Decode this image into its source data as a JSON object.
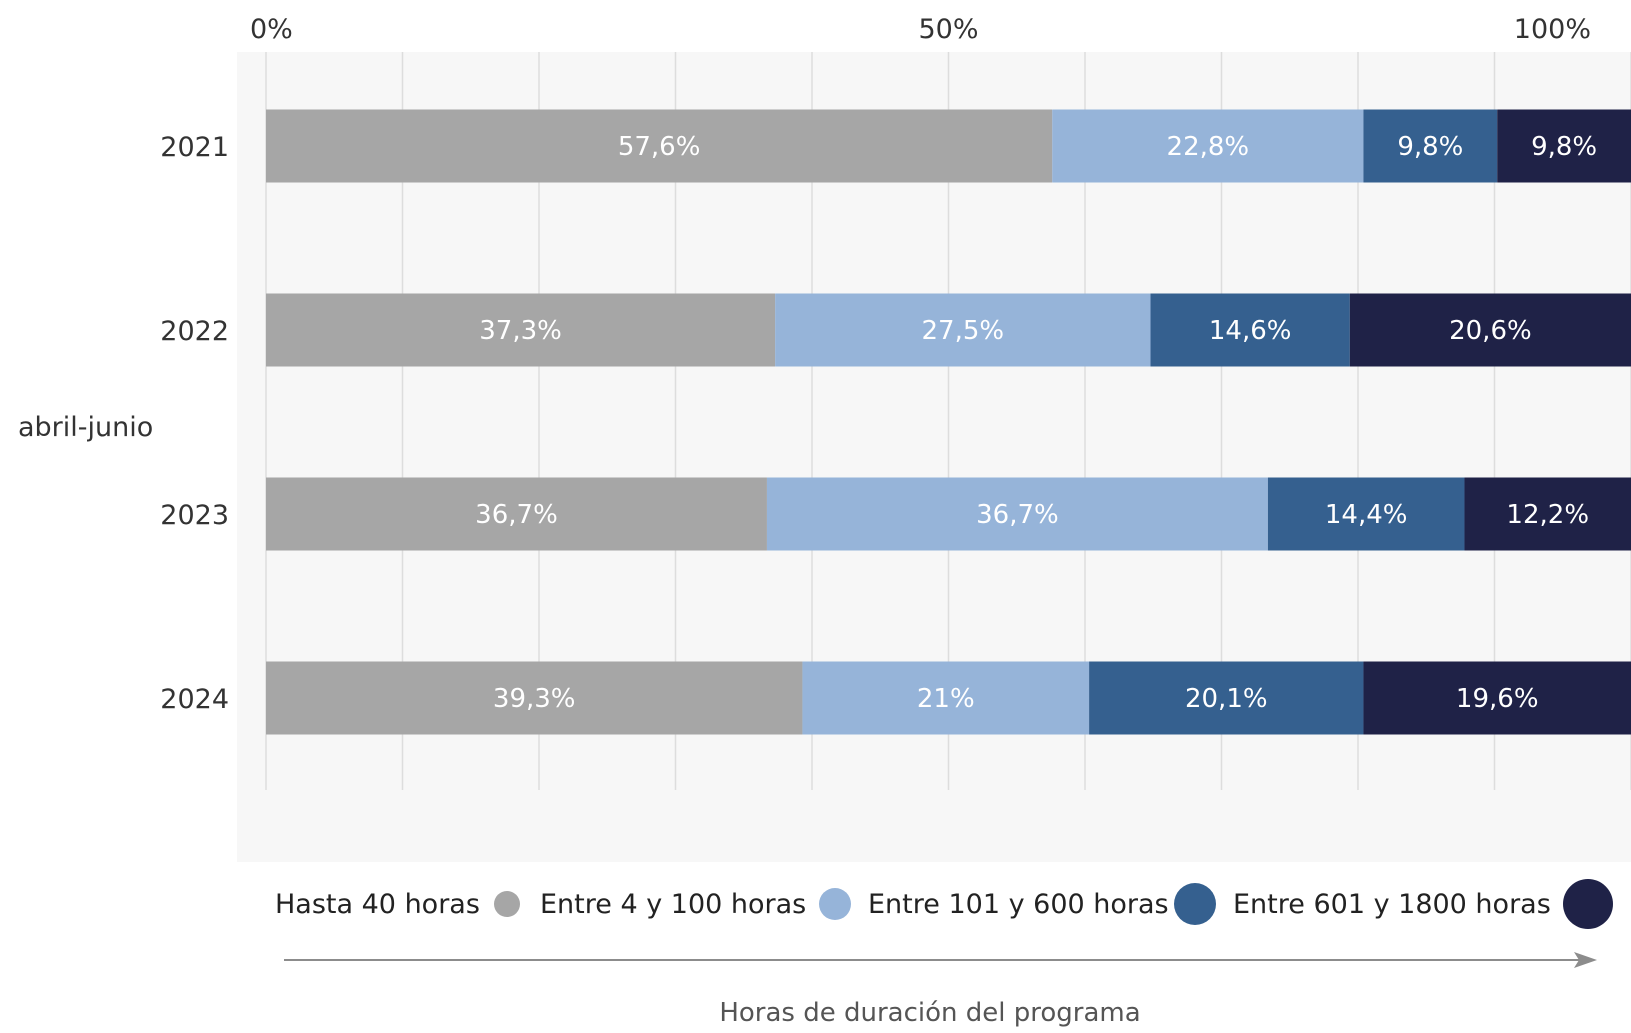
{
  "chart_data": {
    "type": "bar",
    "orientation": "horizontal",
    "stacked": true,
    "percent_axis": true,
    "group_label": "abril-junio",
    "categories": [
      "2021",
      "2022",
      "2023",
      "2024"
    ],
    "x_ticks": [
      "0%",
      "50%",
      "100%"
    ],
    "xlim": [
      0,
      100
    ],
    "xlabel": "Horas de duración del programa",
    "grid": true,
    "legend_position": "bottom",
    "series": [
      {
        "name": "Hasta 40 horas",
        "color": "#a6a6a6",
        "values": [
          57.6,
          37.3,
          36.7,
          39.3
        ],
        "labels": [
          "57,6%",
          "37,3%",
          "36,7%",
          "39,3%"
        ]
      },
      {
        "name": "Entre 4 y 100 horas",
        "color": "#96b4d9",
        "values": [
          22.8,
          27.5,
          36.7,
          21
        ],
        "labels": [
          "22,8%",
          "27,5%",
          "36,7%",
          "21%"
        ]
      },
      {
        "name": "Entre 101 y 600 horas",
        "color": "#35608f",
        "values": [
          9.8,
          14.6,
          14.4,
          20.1
        ],
        "labels": [
          "9,8%",
          "14,6%",
          "14,4%",
          "20,1%"
        ]
      },
      {
        "name": "Entre 601 y 1800 horas",
        "color": "#1f2247",
        "values": [
          9.8,
          20.6,
          12.2,
          19.6
        ],
        "labels": [
          "9,8%",
          "20,6%",
          "12,2%",
          "19,6%"
        ]
      }
    ]
  }
}
